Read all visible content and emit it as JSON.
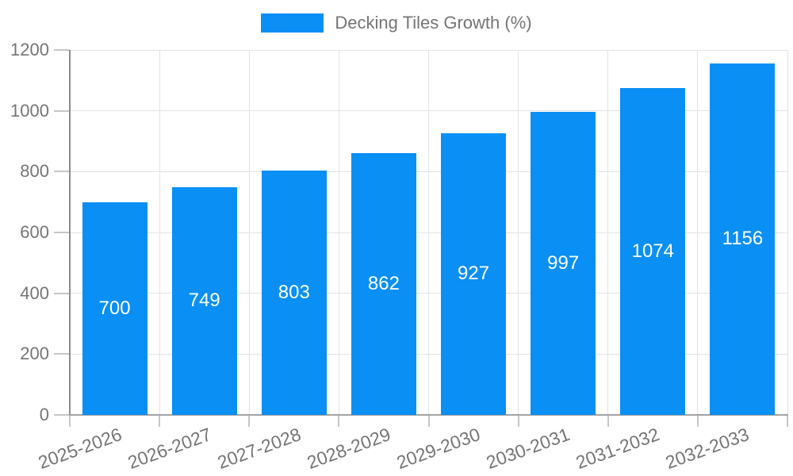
{
  "chart_data": {
    "type": "bar",
    "title": "",
    "legend_entries": [
      "Decking Tiles Growth (%)"
    ],
    "legend_position": "top-center",
    "categories": [
      "2025-2026",
      "2026-2027",
      "2027-2028",
      "2028-2029",
      "2029-2030",
      "2030-2031",
      "2031-2032",
      "2032-2033"
    ],
    "values": [
      700,
      749,
      803,
      862,
      927,
      997,
      1074,
      1156
    ],
    "bar_value_labels": [
      "700",
      "749",
      "803",
      "862",
      "927",
      "997",
      "1074",
      "1156"
    ],
    "xlabel": "",
    "ylabel": "",
    "ylim": [
      0,
      1200
    ],
    "yticks": [
      0,
      200,
      400,
      600,
      800,
      1000,
      1200
    ],
    "grid": true,
    "colors": {
      "bar": "#0a8ff5",
      "bar_value_text": "#ffffff",
      "axis_text": "#757575",
      "legend_text": "#757575",
      "gridline": "#e2e2e2",
      "axis_line": "#8c8c8c",
      "background": "#ffffff"
    }
  },
  "legend": {
    "label": "Decking Tiles Growth (%)"
  }
}
